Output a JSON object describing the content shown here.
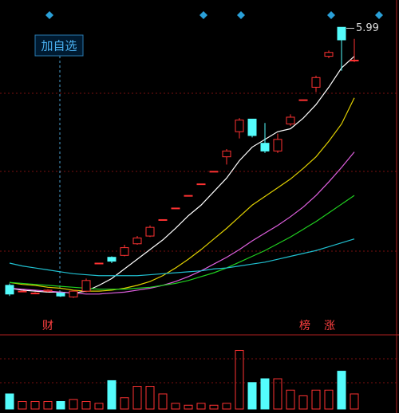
{
  "chart_data": {
    "type": "candlestick",
    "open": [
      3.33,
      3.27,
      3.25,
      3.27,
      3.25,
      3.21,
      3.27,
      3.56,
      3.62,
      3.64,
      3.76,
      3.84,
      4.01,
      4.13,
      4.26,
      4.38,
      4.51,
      4.66,
      4.92,
      5.05,
      4.8,
      4.72,
      5.0,
      5.25,
      5.38,
      5.7,
      6.0,
      5.66
    ],
    "close": [
      3.24,
      3.27,
      3.25,
      3.28,
      3.22,
      3.27,
      3.38,
      3.56,
      3.58,
      3.72,
      3.82,
      3.93,
      4.01,
      4.13,
      4.26,
      4.38,
      4.51,
      4.72,
      5.04,
      4.88,
      4.72,
      4.84,
      5.07,
      5.25,
      5.48,
      5.74,
      5.87,
      5.66
    ],
    "high": [
      3.35,
      3.28,
      3.26,
      3.29,
      3.26,
      3.28,
      3.4,
      3.56,
      3.63,
      3.75,
      3.84,
      3.95,
      4.01,
      4.13,
      4.26,
      4.38,
      4.51,
      4.74,
      5.06,
      5.05,
      5.01,
      4.9,
      5.1,
      5.25,
      5.5,
      5.76,
      5.99,
      5.88
    ],
    "low": [
      3.22,
      3.26,
      3.24,
      3.26,
      3.21,
      3.2,
      3.26,
      3.56,
      3.56,
      3.63,
      3.75,
      3.83,
      4.01,
      4.13,
      4.26,
      4.38,
      4.51,
      4.58,
      4.85,
      4.86,
      4.7,
      4.7,
      4.98,
      5.25,
      5.33,
      5.68,
      5.55,
      5.64
    ],
    "ylim": [
      2.9,
      6.2
    ],
    "lines": [
      {
        "color": "#ffffff",
        "values": [
          3.3,
          3.28,
          3.27,
          3.26,
          3.26,
          3.25,
          3.27,
          3.33,
          3.4,
          3.5,
          3.6,
          3.7,
          3.8,
          3.92,
          4.05,
          4.16,
          4.3,
          4.44,
          4.62,
          4.76,
          4.84,
          4.92,
          4.95,
          5.06,
          5.2,
          5.38,
          5.58,
          5.7
        ]
      },
      {
        "color": "#e0d000",
        "values": [
          3.36,
          3.34,
          3.33,
          3.31,
          3.3,
          3.28,
          3.27,
          3.27,
          3.28,
          3.3,
          3.33,
          3.37,
          3.43,
          3.51,
          3.6,
          3.7,
          3.81,
          3.92,
          4.04,
          4.16,
          4.25,
          4.34,
          4.43,
          4.54,
          4.66,
          4.82,
          5.0,
          5.27
        ]
      },
      {
        "color": "#e060e0",
        "values": [
          3.3,
          3.29,
          3.28,
          3.27,
          3.26,
          3.25,
          3.24,
          3.24,
          3.25,
          3.26,
          3.28,
          3.3,
          3.33,
          3.37,
          3.42,
          3.48,
          3.55,
          3.62,
          3.7,
          3.79,
          3.87,
          3.95,
          4.04,
          4.14,
          4.26,
          4.4,
          4.55,
          4.71
        ]
      },
      {
        "color": "#20d020",
        "values": [
          3.36,
          3.35,
          3.34,
          3.33,
          3.32,
          3.31,
          3.3,
          3.29,
          3.29,
          3.29,
          3.3,
          3.31,
          3.33,
          3.35,
          3.38,
          3.42,
          3.46,
          3.51,
          3.57,
          3.63,
          3.69,
          3.76,
          3.83,
          3.91,
          3.99,
          4.08,
          4.17,
          4.26
        ]
      },
      {
        "color": "#20c0d0",
        "values": [
          3.56,
          3.53,
          3.51,
          3.49,
          3.47,
          3.45,
          3.44,
          3.43,
          3.43,
          3.43,
          3.43,
          3.44,
          3.45,
          3.46,
          3.47,
          3.48,
          3.5,
          3.51,
          3.53,
          3.55,
          3.57,
          3.6,
          3.63,
          3.66,
          3.69,
          3.73,
          3.77,
          3.81
        ]
      }
    ],
    "volume": [
      16,
      8,
      8,
      8,
      8,
      10,
      8,
      6,
      30,
      12,
      24,
      24,
      16,
      6,
      4,
      6,
      4,
      6,
      62,
      28,
      32,
      32,
      20,
      14,
      20,
      20,
      40,
      16
    ],
    "vlim": [
      0,
      70
    ],
    "up_color": "#ff3232",
    "down_color": "#54fcfc",
    "button": "加自选",
    "labels": [
      "财",
      "榜",
      "涨"
    ]
  }
}
